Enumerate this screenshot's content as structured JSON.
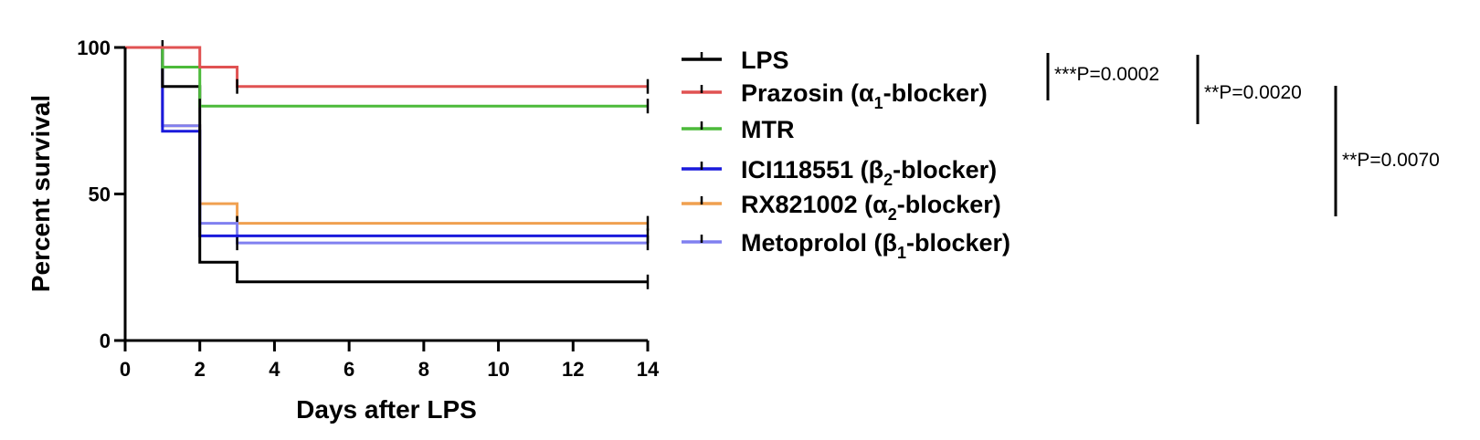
{
  "chart_data": {
    "type": "line",
    "subtype": "kaplan-meier-step",
    "xlabel": "Days after LPS",
    "ylabel": "Percent survival",
    "xlim": [
      0,
      14
    ],
    "ylim": [
      0,
      100
    ],
    "x_ticks": [
      0,
      2,
      4,
      6,
      8,
      10,
      12,
      14
    ],
    "y_ticks": [
      0,
      50,
      100
    ],
    "grid": false,
    "legend_position": "right",
    "series": [
      {
        "key": "lps",
        "name": "LPS",
        "color": "#000000",
        "steps": [
          [
            0,
            100
          ],
          [
            1,
            86.7
          ],
          [
            2,
            26.7
          ],
          [
            3,
            20
          ],
          [
            14,
            20
          ]
        ],
        "censor_ticks": [
          [
            1,
            100
          ],
          [
            14,
            20
          ]
        ]
      },
      {
        "key": "prazosin",
        "name": "Prazosin (α1-blocker)",
        "label_parts": [
          "Prazosin (α",
          "1",
          "-blocker)"
        ],
        "color": "#e05252",
        "steps": [
          [
            0,
            100
          ],
          [
            2,
            93.3
          ],
          [
            3,
            86.7
          ],
          [
            14,
            86.7
          ]
        ],
        "censor_ticks": [
          [
            3,
            86.7
          ],
          [
            14,
            86.7
          ]
        ]
      },
      {
        "key": "mtr",
        "name": "MTR",
        "color": "#4cba3a",
        "steps": [
          [
            0,
            100
          ],
          [
            1,
            93.3
          ],
          [
            2,
            80
          ],
          [
            14,
            80
          ]
        ],
        "censor_ticks": [
          [
            2,
            80
          ],
          [
            14,
            80
          ]
        ]
      },
      {
        "key": "ici",
        "name": "ICI118551 (β2-blocker)",
        "label_parts": [
          "ICI118551 (β",
          "2",
          "-blocker)"
        ],
        "color": "#1a1adb",
        "steps": [
          [
            0,
            100
          ],
          [
            1,
            71.4
          ],
          [
            2,
            35.7
          ],
          [
            14,
            35.7
          ]
        ],
        "censor_ticks": [
          [
            14,
            35.7
          ]
        ]
      },
      {
        "key": "rx",
        "name": "RX821002 (α2-blocker)",
        "label_parts": [
          "RX821002 (α",
          "2",
          "-blocker)"
        ],
        "color": "#f0a050",
        "steps": [
          [
            0,
            100
          ],
          [
            1,
            73.3
          ],
          [
            2,
            46.7
          ],
          [
            3,
            40
          ],
          [
            14,
            40
          ]
        ],
        "censor_ticks": [
          [
            3,
            40
          ],
          [
            14,
            40
          ]
        ]
      },
      {
        "key": "metoprolol",
        "name": "Metoprolol (β1-blocker)",
        "label_parts": [
          "Metoprolol (β",
          "1",
          "-blocker)"
        ],
        "color": "#8080f0",
        "steps": [
          [
            0,
            100
          ],
          [
            1,
            73.3
          ],
          [
            2,
            40
          ],
          [
            3,
            33.3
          ],
          [
            14,
            33.3
          ]
        ],
        "censor_ticks": [
          [
            3,
            33.3
          ],
          [
            14,
            33.3
          ]
        ]
      }
    ],
    "annotations": [
      {
        "text": "***P=0.0002",
        "spans": [
          "LPS",
          "Prazosin (α1-blocker)"
        ]
      },
      {
        "text": "**P=0.0020",
        "spans": [
          "LPS",
          "MTR"
        ]
      },
      {
        "text": "**P=0.0070",
        "spans": [
          "Prazosin (α1-blocker)",
          "Metoprolol (β1-blocker)"
        ]
      }
    ]
  }
}
